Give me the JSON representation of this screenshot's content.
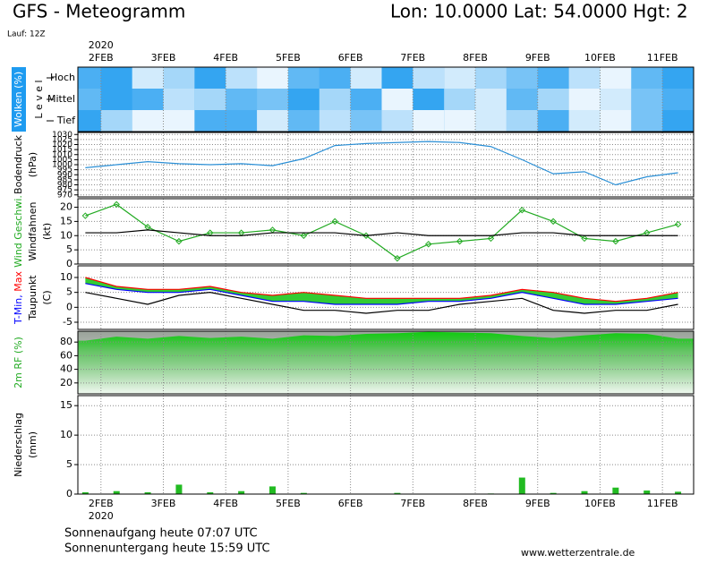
{
  "header": {
    "title": "GFS - Meteogramm",
    "location": "Lon: 10.0000 Lat: 54.0000 Hgt: 2",
    "run": "Lauf: 12Z"
  },
  "time_axis": {
    "xlim": [
      1.63,
      11.5
    ],
    "year": "2020",
    "xticks": [
      {
        "value": 2,
        "label": "2FEB"
      },
      {
        "value": 3,
        "label": "3FEB"
      },
      {
        "value": 4,
        "label": "4FEB"
      },
      {
        "value": 5,
        "label": "5FEB"
      },
      {
        "value": 6,
        "label": "6FEB"
      },
      {
        "value": 7,
        "label": "7FEB"
      },
      {
        "value": 8,
        "label": "8FEB"
      },
      {
        "value": 9,
        "label": "9FEB"
      },
      {
        "value": 10,
        "label": "10FEB"
      },
      {
        "value": 11,
        "label": "11FEB"
      }
    ]
  },
  "chart_data": [
    {
      "type": "heatmap",
      "ylabel": [
        "Wolken (%)"
      ],
      "level_label": "L e v e l",
      "rows": [
        "Hoch",
        "Mittel",
        "Tief"
      ],
      "color": "#1e9bf0",
      "cloud_color": "#ffffff",
      "x": [
        1.75,
        2.25,
        2.75,
        3.25,
        3.75,
        4.25,
        4.75,
        5.25,
        5.75,
        6.25,
        6.75,
        7.25,
        7.75,
        8.25,
        8.75,
        9.25,
        9.75,
        10.25,
        10.75,
        11.25
      ],
      "values": [
        [
          20,
          10,
          80,
          60,
          10,
          70,
          90,
          30,
          20,
          80,
          10,
          70,
          80,
          60,
          40,
          20,
          70,
          90,
          30,
          10
        ],
        [
          30,
          10,
          20,
          70,
          60,
          30,
          40,
          10,
          60,
          20,
          90,
          10,
          60,
          80,
          30,
          60,
          90,
          80,
          40,
          20
        ],
        [
          10,
          60,
          90,
          90,
          20,
          20,
          80,
          30,
          70,
          40,
          70,
          90,
          90,
          80,
          60,
          20,
          80,
          90,
          40,
          10
        ]
      ]
    },
    {
      "type": "line",
      "ylabel": [
        "Bodendruck",
        "(hPa)"
      ],
      "ylim": [
        968,
        1032
      ],
      "yticks": [
        970,
        975,
        980,
        985,
        990,
        995,
        1000,
        1005,
        1010,
        1015,
        1020,
        1025,
        1030
      ],
      "x": [
        1.75,
        2.25,
        2.75,
        3.25,
        3.75,
        4.25,
        4.75,
        5.25,
        5.75,
        6.25,
        6.75,
        7.25,
        7.75,
        8.25,
        8.75,
        9.25,
        9.75,
        10.25,
        10.75,
        11.25
      ],
      "series": [
        {
          "color": "#2a8fd6",
          "values": [
            997,
            1000,
            1003,
            1001,
            1000,
            1001,
            999,
            1006,
            1019,
            1021,
            1022,
            1023,
            1022,
            1018,
            1005,
            991,
            993,
            980,
            988,
            992
          ]
        }
      ]
    },
    {
      "type": "line",
      "ylabel": [
        "(kt)"
      ],
      "ylim": [
        0,
        23
      ],
      "yticks": [
        0,
        5,
        10,
        15,
        20
      ],
      "x": [
        1.75,
        2.25,
        2.75,
        3.25,
        3.75,
        4.25,
        4.75,
        5.25,
        5.75,
        6.25,
        6.75,
        7.25,
        7.75,
        8.25,
        8.75,
        9.25,
        9.75,
        10.25,
        10.75,
        11.25
      ],
      "series": [
        {
          "name": "Wind Geschwi.",
          "color": "#22aa22",
          "markers": true,
          "values": [
            17,
            21,
            13,
            8,
            11,
            11,
            12,
            10,
            15,
            10,
            2,
            7,
            8,
            9,
            19,
            15,
            9,
            8,
            11,
            14
          ]
        },
        {
          "name": "Windfahnen",
          "color": "#000000",
          "values": [
            11,
            11,
            12,
            11,
            10,
            10,
            11,
            11,
            11,
            10,
            11,
            10,
            10,
            10,
            11,
            11,
            10,
            10,
            10,
            10
          ]
        }
      ]
    },
    {
      "type": "line",
      "ylabel": [
        "(C)"
      ],
      "ylim": [
        -7.4,
        13.9
      ],
      "yticks": [
        -5,
        0,
        5,
        10
      ],
      "fill": "#33cc33",
      "x": [
        1.75,
        2.25,
        2.75,
        3.25,
        3.75,
        4.25,
        4.75,
        5.25,
        5.75,
        6.25,
        6.75,
        7.25,
        7.75,
        8.25,
        8.75,
        9.25,
        9.75,
        10.25,
        10.75,
        11.25
      ],
      "series": [
        {
          "name": "T-Min,",
          "color": "#0000ff",
          "values": [
            8,
            6,
            5,
            5,
            6,
            4,
            2,
            2,
            1,
            1,
            1,
            2,
            2,
            3,
            5,
            3,
            1,
            1,
            2,
            3
          ]
        },
        {
          "name": "Max",
          "color": "#ff0000",
          "values": [
            10,
            7,
            6,
            6,
            7,
            5,
            4,
            5,
            4,
            3,
            3,
            3,
            3,
            4,
            6,
            5,
            3,
            2,
            3,
            5
          ]
        },
        {
          "name": "Taupunkt",
          "color": "#000000",
          "values": [
            5,
            3,
            1,
            4,
            5,
            3,
            1,
            -1,
            -1,
            -2,
            -1,
            -1,
            1,
            2,
            3,
            -1,
            -2,
            -1,
            -1,
            1
          ]
        }
      ]
    },
    {
      "type": "area",
      "ylabel": [
        "2m RF (%)"
      ],
      "ylabel_color": "#22aa22",
      "color": "#11cc11",
      "ylim": [
        4,
        96
      ],
      "yticks": [
        20,
        40,
        60,
        80
      ],
      "x": [
        1.75,
        2.25,
        2.75,
        3.25,
        3.75,
        4.25,
        4.75,
        5.25,
        5.75,
        6.25,
        6.75,
        7.25,
        7.75,
        8.25,
        8.75,
        9.25,
        9.75,
        10.25,
        10.75,
        11.25
      ],
      "values": [
        82,
        88,
        85,
        89,
        86,
        88,
        85,
        90,
        89,
        92,
        93,
        95,
        94,
        93,
        89,
        86,
        90,
        93,
        92,
        85
      ]
    },
    {
      "type": "bar",
      "ylabel": [
        "Niederschlag",
        "(mm)"
      ],
      "color": "#22bb22",
      "ylim": [
        0,
        16.7
      ],
      "yticks": [
        0,
        5,
        10,
        15
      ],
      "x": [
        1.75,
        2.25,
        2.75,
        3.25,
        3.75,
        4.25,
        4.75,
        5.25,
        5.75,
        6.25,
        6.75,
        7.25,
        7.75,
        8.25,
        8.75,
        9.25,
        9.75,
        10.25,
        10.75,
        11.25
      ],
      "values": [
        0.3,
        0.5,
        0.3,
        1.6,
        0.3,
        0.5,
        1.3,
        0.2,
        0,
        0,
        0.2,
        0,
        0,
        0.1,
        2.8,
        0.2,
        0.5,
        1.1,
        0.6,
        0.4
      ]
    }
  ],
  "footer": {
    "sunrise": "Sonnenaufgang heute 07:07 UTC",
    "sunset": "Sonnenuntergang heute 15:59 UTC",
    "site": "www.wetterzentrale.de"
  }
}
